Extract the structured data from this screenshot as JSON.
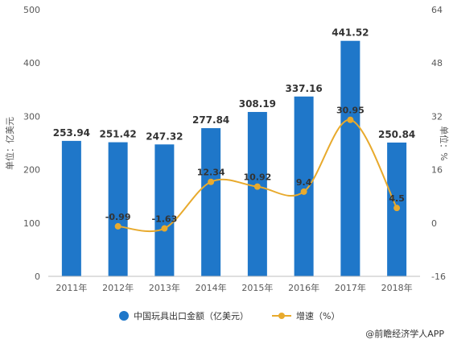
{
  "chart_data": {
    "type": "bar",
    "categories": [
      "2011年",
      "2012年",
      "2013年",
      "2014年",
      "2015年",
      "2016年",
      "2017年",
      "2018年"
    ],
    "series": [
      {
        "name": "中国玩具出口金额（亿美元）",
        "type": "bar",
        "axis": "left",
        "color": "#1f77c9",
        "values": [
          253.94,
          251.42,
          247.32,
          277.84,
          308.19,
          337.16,
          441.52,
          250.84
        ],
        "labels": [
          "253.94",
          "251.42",
          "247.32",
          "277.84",
          "308.19",
          "337.16",
          "441.52",
          "250.84"
        ]
      },
      {
        "name": "增速（%）",
        "type": "line",
        "axis": "right",
        "color": "#e8aa2d",
        "values": [
          null,
          -0.99,
          -1.63,
          12.34,
          10.92,
          9.4,
          30.95,
          4.5
        ],
        "labels": [
          "",
          "-0.99",
          "-1.63",
          "12.34",
          "10.92",
          "9.4",
          "30.95",
          "4.5"
        ]
      }
    ],
    "y_left": {
      "label": "单位：亿美元",
      "range": [
        0,
        500
      ],
      "ticks": [
        "0",
        "100",
        "200",
        "300",
        "400",
        "500"
      ]
    },
    "y_right": {
      "label": "单位：%",
      "range": [
        -16,
        64
      ],
      "ticks": [
        "-16",
        "0",
        "16",
        "32",
        "48",
        "64"
      ]
    },
    "legend_position": "bottom-center",
    "grid": false
  },
  "credit": "@前瞻经济学人APP"
}
